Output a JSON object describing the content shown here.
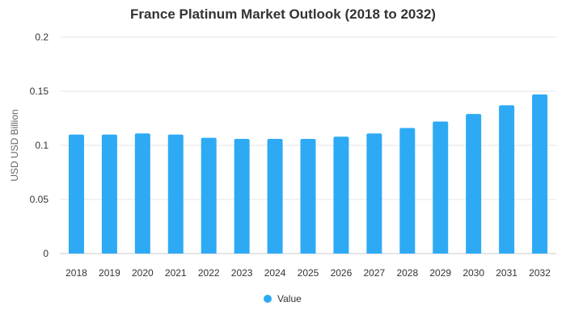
{
  "chart_data": {
    "type": "bar",
    "title": "France Platinum Market Outlook (2018 to 2032)",
    "xlabel": "",
    "ylabel": "USD USD Billion",
    "categories": [
      "2018",
      "2019",
      "2020",
      "2021",
      "2022",
      "2023",
      "2024",
      "2025",
      "2026",
      "2027",
      "2028",
      "2029",
      "2030",
      "2031",
      "2032"
    ],
    "series": [
      {
        "name": "Value",
        "values": [
          0.11,
          0.11,
          0.111,
          0.11,
          0.107,
          0.106,
          0.106,
          0.106,
          0.108,
          0.111,
          0.116,
          0.122,
          0.129,
          0.137,
          0.147
        ]
      }
    ],
    "ylim": [
      0,
      0.2
    ],
    "yticks": [
      "0",
      "0.05",
      "0.1",
      "0.15",
      "0.2"
    ],
    "grid": true,
    "legend_position": "bottom-center",
    "colors": {
      "bar": "#2eaaf5",
      "grid": "#e6e6e6"
    }
  }
}
